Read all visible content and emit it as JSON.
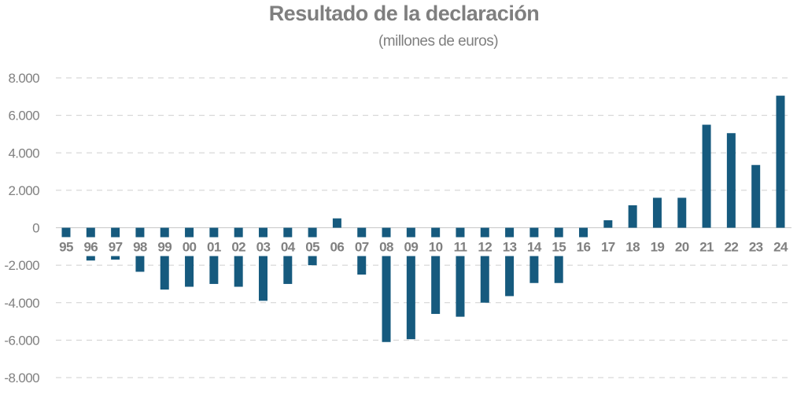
{
  "chart_data": {
    "type": "bar",
    "title": "Resultado de la declaración",
    "subtitle": "(millones de euros)",
    "xlabel": "",
    "ylabel": "",
    "ylim": [
      -8000,
      8000
    ],
    "yticks": [
      8000,
      6000,
      4000,
      2000,
      0,
      -2000,
      -4000,
      -6000,
      -8000
    ],
    "ytick_labels": [
      "8.000",
      "6.000",
      "4.000",
      "2.000",
      "0",
      "-2.000",
      "-4.000",
      "-6.000",
      "-8.000"
    ],
    "grid": true,
    "legend": "none",
    "bar_color": "#165a7e",
    "categories": [
      "95",
      "96",
      "97",
      "98",
      "99",
      "00",
      "01",
      "02",
      "03",
      "04",
      "05",
      "06",
      "07",
      "08",
      "09",
      "10",
      "11",
      "12",
      "13",
      "14",
      "15",
      "16",
      "17",
      "18",
      "19",
      "20",
      "21",
      "22",
      "23",
      "24"
    ],
    "series": [
      {
        "name": "Resultado de la declaración",
        "values": [
          -500,
          -1750,
          -1700,
          -2350,
          -3300,
          -3150,
          -3000,
          -3150,
          -3900,
          -3000,
          -2000,
          500,
          -2500,
          -6100,
          -5950,
          -4600,
          -4750,
          -4000,
          -3650,
          -2950,
          -2950,
          -550,
          400,
          1200,
          1600,
          1600,
          5500,
          5050,
          3350,
          7050
        ]
      }
    ]
  }
}
